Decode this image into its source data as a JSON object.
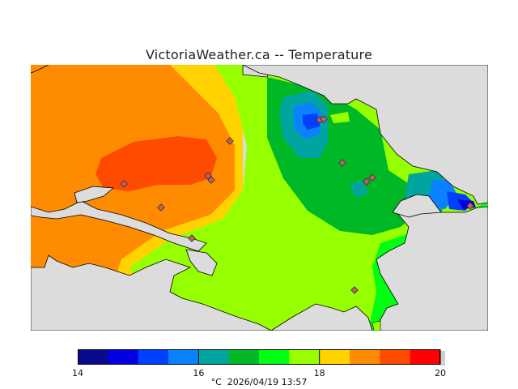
{
  "title": "VictoriaWeather.ca -- Temperature",
  "legend": {
    "unit": "°C",
    "min": 14,
    "max": 20,
    "tick_labels": [
      "14",
      "16",
      "18",
      "20"
    ],
    "ticks": [
      14,
      16,
      18,
      20
    ],
    "colors": [
      "#0a0a8c",
      "#0000e0",
      "#0040ff",
      "#0a82ff",
      "#00a5a0",
      "#00b826",
      "#00ff12",
      "#96ff00",
      "#ffd200",
      "#ff8c00",
      "#ff4b00",
      "#ff0000"
    ]
  },
  "timestamp": "2026/04/19 13:57",
  "footer_sep": "  ",
  "colors": {
    "background": "#dcdcdc",
    "coast": "#000000",
    "station": "#c06060"
  }
}
